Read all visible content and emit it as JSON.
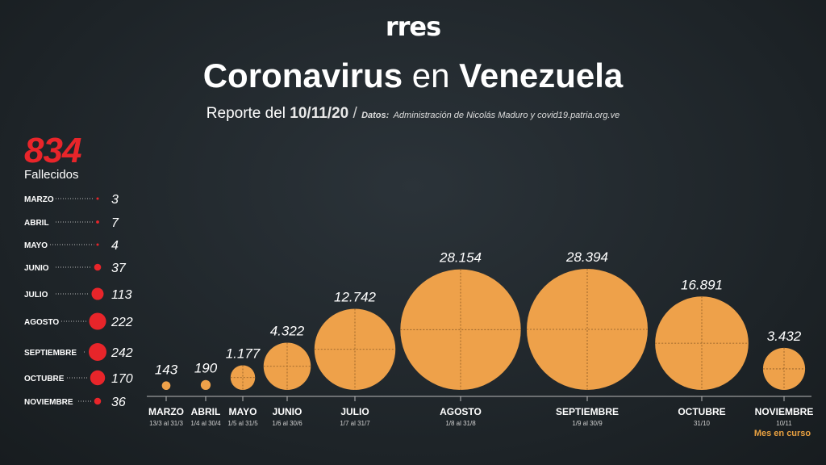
{
  "header": {
    "logo": "rres",
    "title_part1": "Coronavirus",
    "title_part2": "en",
    "title_part3": "Venezuela",
    "subtitle_prefix": "Reporte del",
    "report_date": "10/11/20",
    "slash": "/",
    "source_label": "Datos:",
    "source_text": "Administración de Nicolás Maduro y covid19.patria.org.ve"
  },
  "deaths": {
    "total": "834",
    "label": "Fallecidos"
  },
  "colors": {
    "deaths_red": "#e8252a",
    "cases_orange": "#eea14a",
    "note_orange": "#e8a040"
  },
  "chart_data": [
    {
      "type": "bubble",
      "title": "",
      "categories": [
        "MARZO",
        "ABRIL",
        "MAYO",
        "JUNIO",
        "JULIO",
        "AGOSTO",
        "SEPTIEMBRE",
        "OCTUBRE",
        "NOVIEMBRE"
      ],
      "ranges": [
        "13/3 al 31/3",
        "1/4 al 30/4",
        "1/5 al 31/5",
        "1/6 al 30/6",
        "1/7 al 31/7",
        "1/8 al 31/8",
        "1/9 al 30/9",
        "31/10",
        "10/11"
      ],
      "values": [
        143,
        190,
        1177,
        4322,
        12742,
        28154,
        28394,
        16891,
        3432
      ],
      "value_labels": [
        "143",
        "190",
        "1.177",
        "4.322",
        "12.742",
        "28.154",
        "28.394",
        "16.891",
        "3.432"
      ],
      "note": "Mes en curso"
    },
    {
      "type": "bubble",
      "title": "",
      "categories": [
        "MARZO",
        "ABRIL",
        "MAYO",
        "JUNIO",
        "JULIO",
        "AGOSTO",
        "SEPTIEMBRE",
        "OCTUBRE",
        "NOVIEMBRE"
      ],
      "values": [
        3,
        7,
        4,
        37,
        113,
        222,
        242,
        170,
        36
      ]
    }
  ]
}
